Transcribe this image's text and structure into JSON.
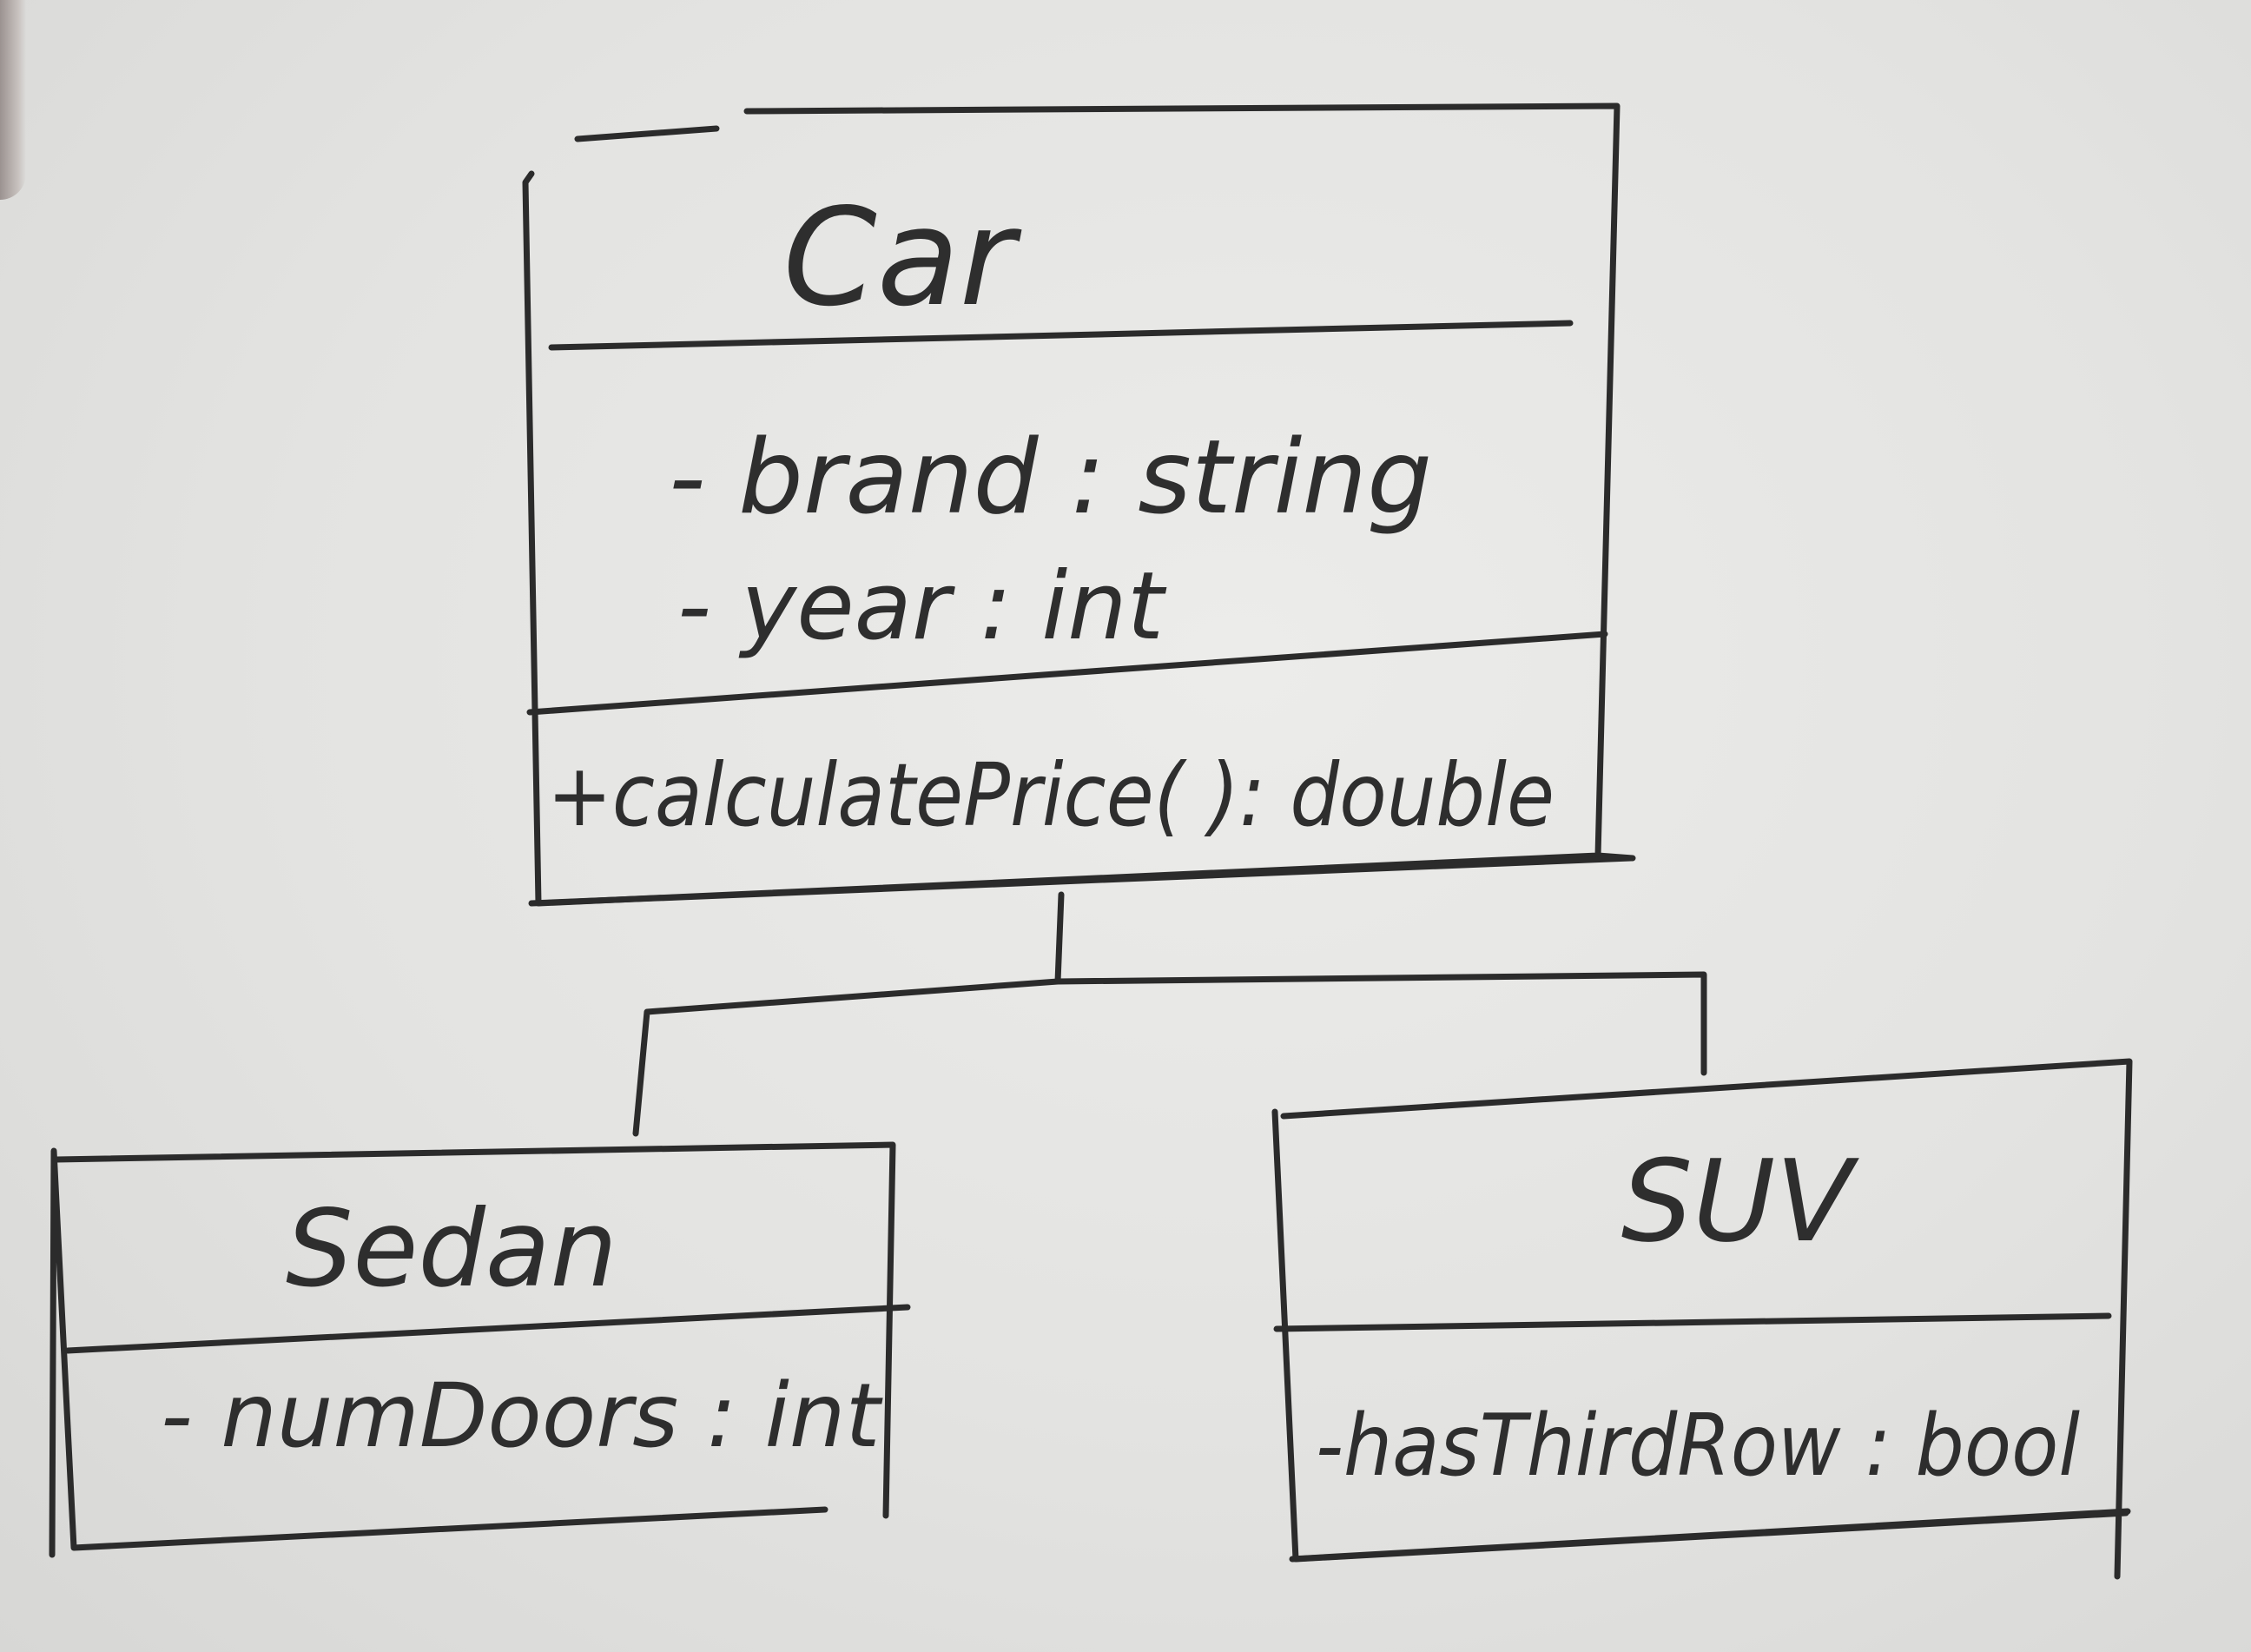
{
  "classes": {
    "car": {
      "name": "Car",
      "attributes": [
        "- brand : string",
        "- year : int"
      ],
      "methods": [
        "+calculatePrice( ): double"
      ]
    },
    "sedan": {
      "name": "Sedan",
      "attributes": [
        "- numDoors : int"
      ]
    },
    "suv": {
      "name": "SUV",
      "attributes": [
        "-hasThirdRow : bool"
      ]
    }
  },
  "relationships": [
    {
      "type": "inheritance",
      "parent": "Car",
      "child": "Sedan"
    },
    {
      "type": "inheritance",
      "parent": "Car",
      "child": "SUV"
    }
  ],
  "colors": {
    "ink": "#2b2b2b",
    "paper": "#e6e6e4"
  }
}
